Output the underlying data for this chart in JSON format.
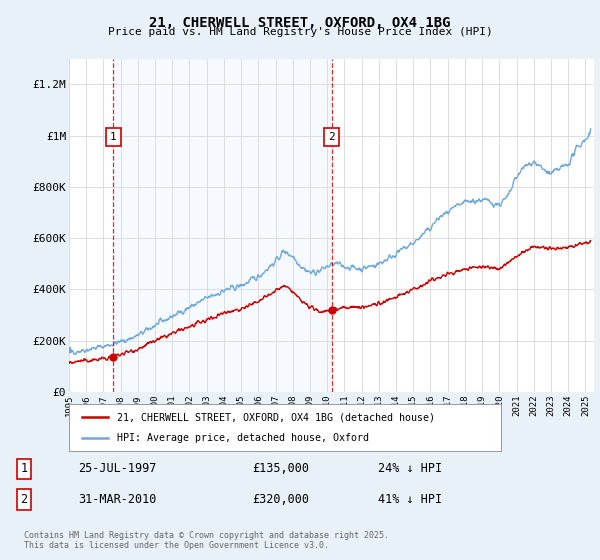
{
  "title": "21, CHERWELL STREET, OXFORD, OX4 1BG",
  "subtitle": "Price paid vs. HM Land Registry's House Price Index (HPI)",
  "ylim": [
    0,
    1300000
  ],
  "xlim_start": 1995.0,
  "xlim_end": 2025.5,
  "yticks": [
    0,
    200000,
    400000,
    600000,
    800000,
    1000000,
    1200000
  ],
  "ytick_labels": [
    "£0",
    "£200K",
    "£400K",
    "£600K",
    "£800K",
    "£1M",
    "£1.2M"
  ],
  "xtick_years": [
    1995,
    1996,
    1997,
    1998,
    1999,
    2000,
    2001,
    2002,
    2003,
    2004,
    2005,
    2006,
    2007,
    2008,
    2009,
    2010,
    2011,
    2012,
    2013,
    2014,
    2015,
    2016,
    2017,
    2018,
    2019,
    2020,
    2021,
    2022,
    2023,
    2024,
    2025
  ],
  "hpi_color": "#6fa8dc",
  "price_color": "#cc0000",
  "shade_color": "#ddeeff",
  "vline1_x": 1997.57,
  "vline2_x": 2010.25,
  "sale1_price": 135000,
  "sale2_price": 320000,
  "sale1_date": "25-JUL-1997",
  "sale2_date": "31-MAR-2010",
  "sale1_hpi_pct": "24% ↓ HPI",
  "sale2_hpi_pct": "41% ↓ HPI",
  "legend_line1": "21, CHERWELL STREET, OXFORD, OX4 1BG (detached house)",
  "legend_line2": "HPI: Average price, detached house, Oxford",
  "footer": "Contains HM Land Registry data © Crown copyright and database right 2025.\nThis data is licensed under the Open Government Licence v3.0.",
  "background_color": "#e8f0f8",
  "plot_bg_color": "#ffffff"
}
